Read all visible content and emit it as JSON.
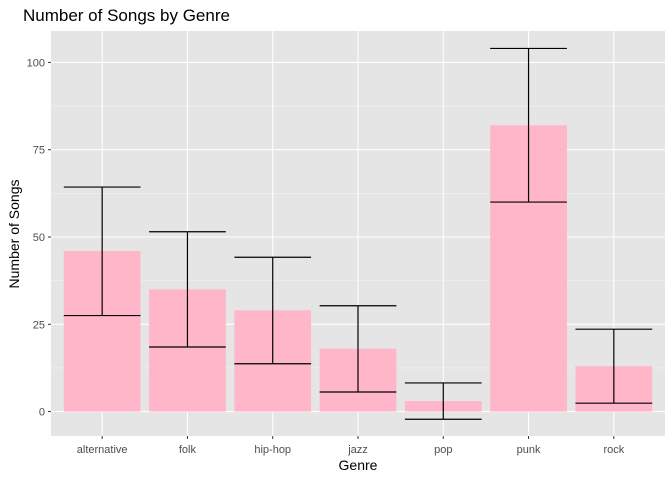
{
  "chart_data": {
    "type": "bar",
    "title": "Number of Songs by Genre",
    "xlabel": "Genre",
    "ylabel": "Number of Songs",
    "categories": [
      "alternative",
      "folk",
      "hip-hop",
      "jazz",
      "pop",
      "punk",
      "rock"
    ],
    "values": [
      46,
      35,
      29,
      18,
      3,
      82,
      13
    ],
    "error_bars": {
      "lower": [
        27.5,
        18.5,
        13.7,
        5.6,
        -2.2,
        60,
        2.4
      ],
      "upper": [
        64.3,
        51.5,
        44.2,
        30.3,
        8.2,
        104,
        23.6
      ]
    },
    "ylim": [
      -7,
      109
    ],
    "yticks": [
      0,
      25,
      50,
      75,
      100
    ],
    "grid": true,
    "legend": "none",
    "colors": {
      "bar": "#ffb6c8",
      "panel": "#e5e5e5",
      "grid_major": "#ffffff",
      "grid_minor": "#f2f2f2",
      "error_bar": "#000000"
    }
  }
}
